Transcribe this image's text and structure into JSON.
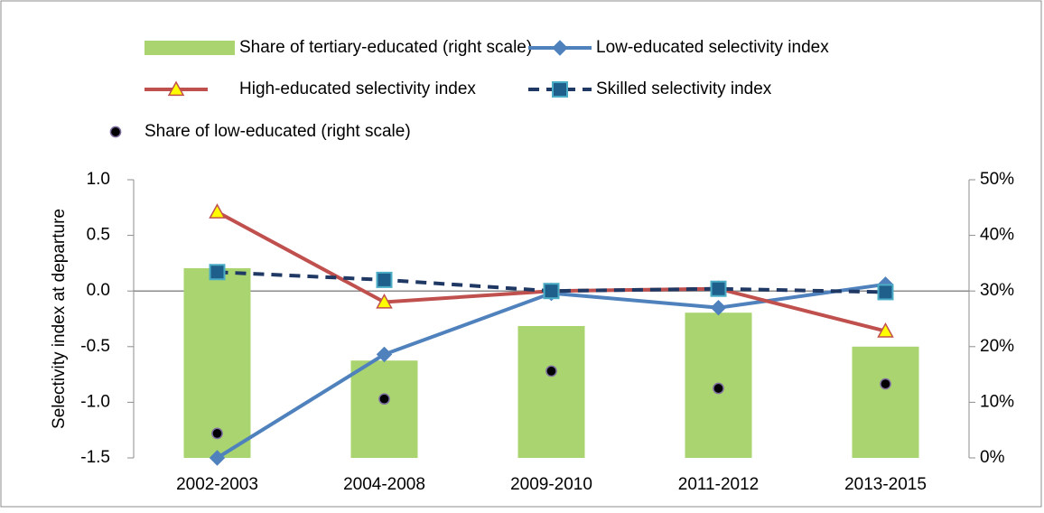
{
  "chart_data": {
    "type": "combo",
    "y_label": "Selectivity index at departure",
    "categories": [
      "2002-2003",
      "2004-2008",
      "2009-2010",
      "2011-2012",
      "2013-2015"
    ],
    "ylim": [
      -1.5,
      1.0
    ],
    "yticks": [
      {
        "value": -1.5,
        "label": "-1.5"
      },
      {
        "value": -1.0,
        "label": "-1.0"
      },
      {
        "value": -0.5,
        "label": "-0.5"
      },
      {
        "value": 0,
        "label": "0.0"
      },
      {
        "value": 0.5,
        "label": "0.5"
      },
      {
        "value": 1.0,
        "label": "1.0"
      }
    ],
    "y2lim": [
      0,
      50
    ],
    "y2ticks": [
      {
        "value": 0,
        "label": "0%"
      },
      {
        "value": 10,
        "label": "10%"
      },
      {
        "value": 20,
        "label": "20%"
      },
      {
        "value": 30,
        "label": "30%"
      },
      {
        "value": 40,
        "label": "40%"
      },
      {
        "value": 50,
        "label": "50%"
      }
    ],
    "series": [
      {
        "name": "Share of tertiary-educated (right scale)",
        "type": "bar",
        "axis": "y2",
        "color": "#a9d46f",
        "values": [
          34.1,
          17.5,
          23.7,
          26.1,
          20.0
        ]
      },
      {
        "name": "Low-educated selectivity index",
        "type": "line",
        "marker": "diamond",
        "color": "#4f81bd",
        "values": [
          -1.5,
          -0.57,
          -0.02,
          -0.15,
          0.06
        ]
      },
      {
        "name": "High-educated selectivity index",
        "type": "line",
        "marker": "triangle",
        "color": "#c0504d",
        "values": [
          0.71,
          -0.1,
          0.0,
          0.02,
          -0.36
        ]
      },
      {
        "name": "Skilled selectivity index",
        "type": "line",
        "marker": "square",
        "dashed": true,
        "color": "#1f3864",
        "values": [
          0.17,
          0.1,
          0.0,
          0.02,
          -0.01
        ]
      },
      {
        "name": "Share of low-educated (right scale)",
        "type": "scatter",
        "axis": "y2",
        "color": "#000000",
        "values": [
          4.4,
          10.6,
          15.6,
          12.5,
          13.3
        ]
      }
    ]
  }
}
